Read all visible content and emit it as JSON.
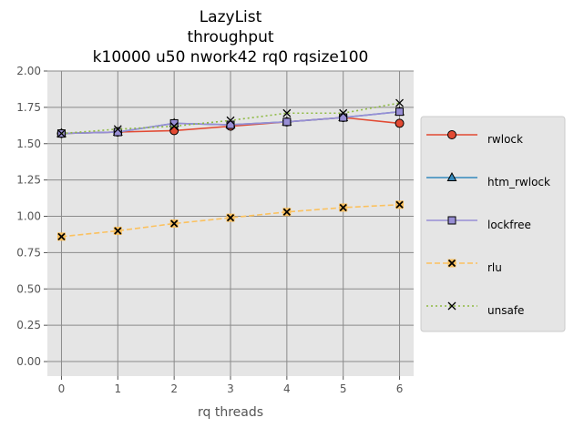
{
  "chart_data": {
    "type": "line",
    "title_lines": [
      "LazyList",
      "throughput",
      "k10000 u50 nwork42 rq0 rqsize100"
    ],
    "xlabel": "rq threads",
    "ylabel": "",
    "x": [
      0,
      1,
      2,
      3,
      4,
      5,
      6
    ],
    "xlim": [
      -0.25,
      6.25
    ],
    "ylim": [
      -0.1,
      2.0
    ],
    "x_ticks": [
      "0",
      "1",
      "2",
      "3",
      "4",
      "5",
      "6"
    ],
    "y_ticks": [
      "0.00",
      "0.25",
      "0.50",
      "0.75",
      "1.00",
      "1.25",
      "1.50",
      "1.75",
      "2.00"
    ],
    "grid": true,
    "legend_position": "right, outside plot",
    "series": [
      {
        "name": "rwlock",
        "color": "#e24a33",
        "marker": "circle",
        "dash": "solid",
        "values": [
          1.57,
          1.58,
          1.59,
          1.62,
          1.65,
          1.68,
          1.64
        ]
      },
      {
        "name": "htm_rwlock",
        "color": "#348abd",
        "marker": "triangle",
        "dash": "solid",
        "values": [
          1.57,
          1.58,
          1.64,
          1.63,
          1.65,
          1.68,
          1.72
        ]
      },
      {
        "name": "lockfree",
        "color": "#988ed5",
        "marker": "square",
        "dash": "solid",
        "values": [
          1.57,
          1.58,
          1.64,
          1.63,
          1.65,
          1.68,
          1.72
        ]
      },
      {
        "name": "rlu",
        "color": "#fbc15e",
        "marker": "x-filled",
        "dash": "dashed",
        "values": [
          0.86,
          0.9,
          0.95,
          0.99,
          1.03,
          1.06,
          1.08
        ]
      },
      {
        "name": "unsafe",
        "color": "#8eba42",
        "marker": "x",
        "dash": "dotted",
        "values": [
          1.57,
          1.6,
          1.62,
          1.66,
          1.71,
          1.71,
          1.78
        ]
      }
    ]
  }
}
